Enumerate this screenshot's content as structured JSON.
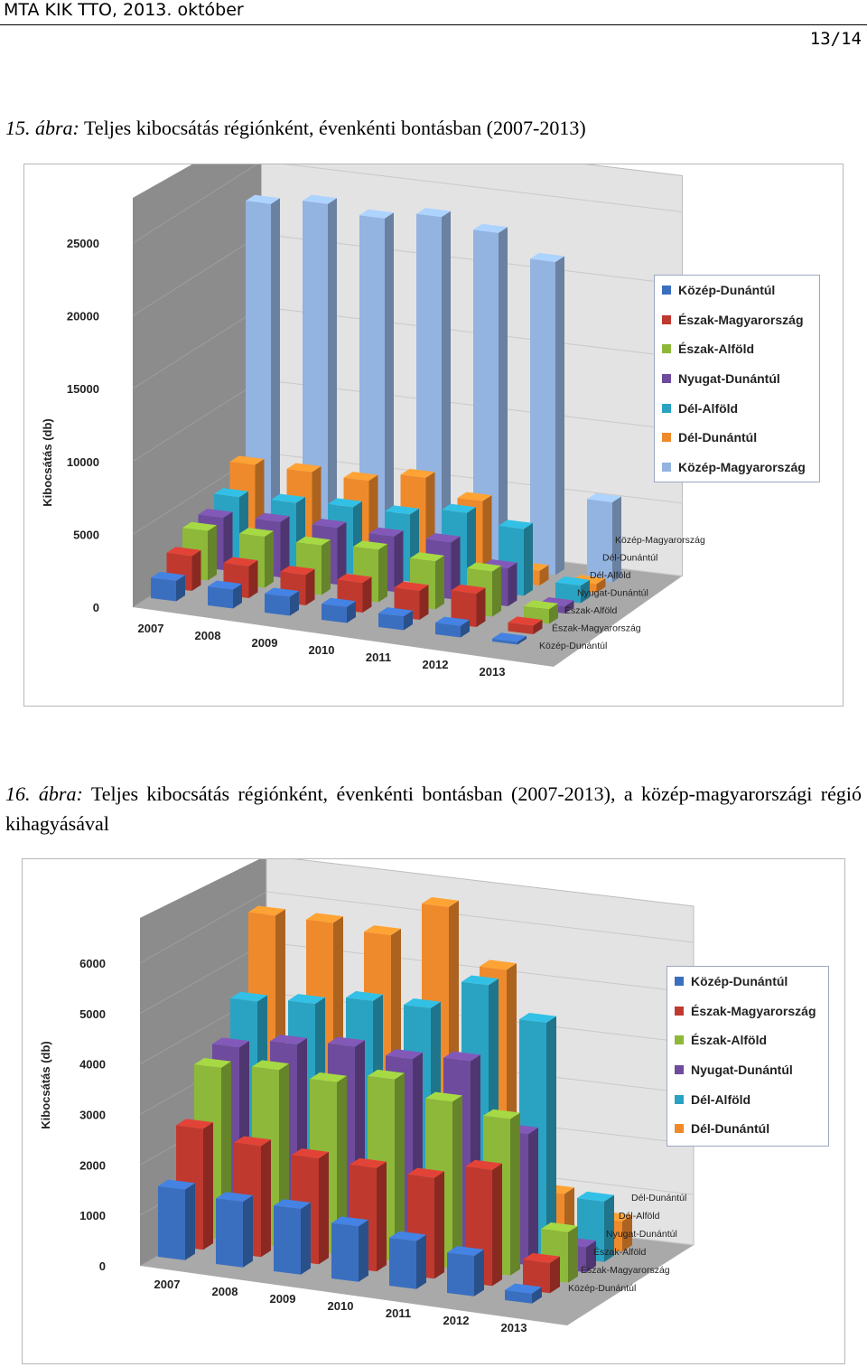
{
  "header": {
    "left": "MTA KIK TTO, 2013. október",
    "page": "13/14"
  },
  "figures": [
    {
      "num": "15.",
      "kw": "ábra:",
      "title": "Teljes kibocsátás régiónként, évenkénti bontásban (2007-2013)"
    },
    {
      "num": "16.",
      "kw": "ábra:",
      "title": "Teljes kibocsátás régiónként, évenkénti bontásban (2007-2013), a közép-magyarországi régió kihagyásával"
    }
  ],
  "colors": {
    "Közép-Dunántúl": "#3a6fc0",
    "Észak-Magyarország": "#c0392f",
    "Észak-Alföld": "#8db83a",
    "Nyugat-Dunántúl": "#6e4b9c",
    "Dél-Alföld": "#2aa3c3",
    "Dél-Dunántúl": "#ef8a2c",
    "Közép-Magyarország": "#93b3e0"
  },
  "chart_data": [
    {
      "type": "bar",
      "subtype": "3d-column",
      "ylabel": "Kibocsátás (db)",
      "yticks": [
        0,
        5000,
        10000,
        15000,
        20000,
        25000
      ],
      "ylim": [
        0,
        25000
      ],
      "categories": [
        "2007",
        "2008",
        "2009",
        "2010",
        "2011",
        "2012",
        "2013"
      ],
      "grid": true,
      "legend": "right",
      "series": [
        {
          "name": "Közép-Dunántúl",
          "values": [
            1400,
            1300,
            1300,
            1100,
            950,
            800,
            200
          ]
        },
        {
          "name": "Észak-Magyarország",
          "values": [
            2400,
            2200,
            2100,
            2050,
            2000,
            2300,
            600
          ]
        },
        {
          "name": "Észak-Alföld",
          "values": [
            3400,
            3500,
            3400,
            3600,
            3300,
            3100,
            1000
          ]
        },
        {
          "name": "Nyugat-Dunántúl",
          "values": [
            3600,
            3800,
            3900,
            3800,
            3900,
            2600,
            500
          ]
        },
        {
          "name": "Dél-Alföld",
          "values": [
            4300,
            4400,
            4600,
            4600,
            5200,
            4600,
            1200
          ]
        },
        {
          "name": "Dél-Dunántúl",
          "values": [
            5800,
            5800,
            5700,
            6400,
            5300,
            1000,
            600
          ]
        },
        {
          "name": "Közép-Magyarország",
          "values": [
            23000,
            23500,
            23000,
            23600,
            23000,
            21500,
            5500
          ]
        }
      ]
    },
    {
      "type": "bar",
      "subtype": "3d-column",
      "ylabel": "Kibocsátás (db)",
      "yticks": [
        0,
        1000,
        2000,
        3000,
        4000,
        5000,
        6000
      ],
      "ylim": [
        0,
        6000
      ],
      "categories": [
        "2007",
        "2008",
        "2009",
        "2010",
        "2011",
        "2012",
        "2013"
      ],
      "grid": true,
      "legend": "right",
      "series": [
        {
          "name": "Közép-Dunántúl",
          "values": [
            1400,
            1300,
            1300,
            1100,
            950,
            800,
            200
          ]
        },
        {
          "name": "Észak-Magyarország",
          "values": [
            2400,
            2200,
            2100,
            2050,
            2000,
            2300,
            600
          ]
        },
        {
          "name": "Észak-Alföld",
          "values": [
            3400,
            3500,
            3400,
            3600,
            3300,
            3100,
            1000
          ]
        },
        {
          "name": "Nyugat-Dunántúl",
          "values": [
            3600,
            3800,
            3900,
            3800,
            3900,
            2600,
            500
          ]
        },
        {
          "name": "Dél-Alföld",
          "values": [
            4300,
            4400,
            4600,
            4600,
            5200,
            4600,
            1200
          ]
        },
        {
          "name": "Dél-Dunántúl",
          "values": [
            5800,
            5800,
            5700,
            6400,
            5300,
            1000,
            600
          ]
        }
      ]
    }
  ]
}
